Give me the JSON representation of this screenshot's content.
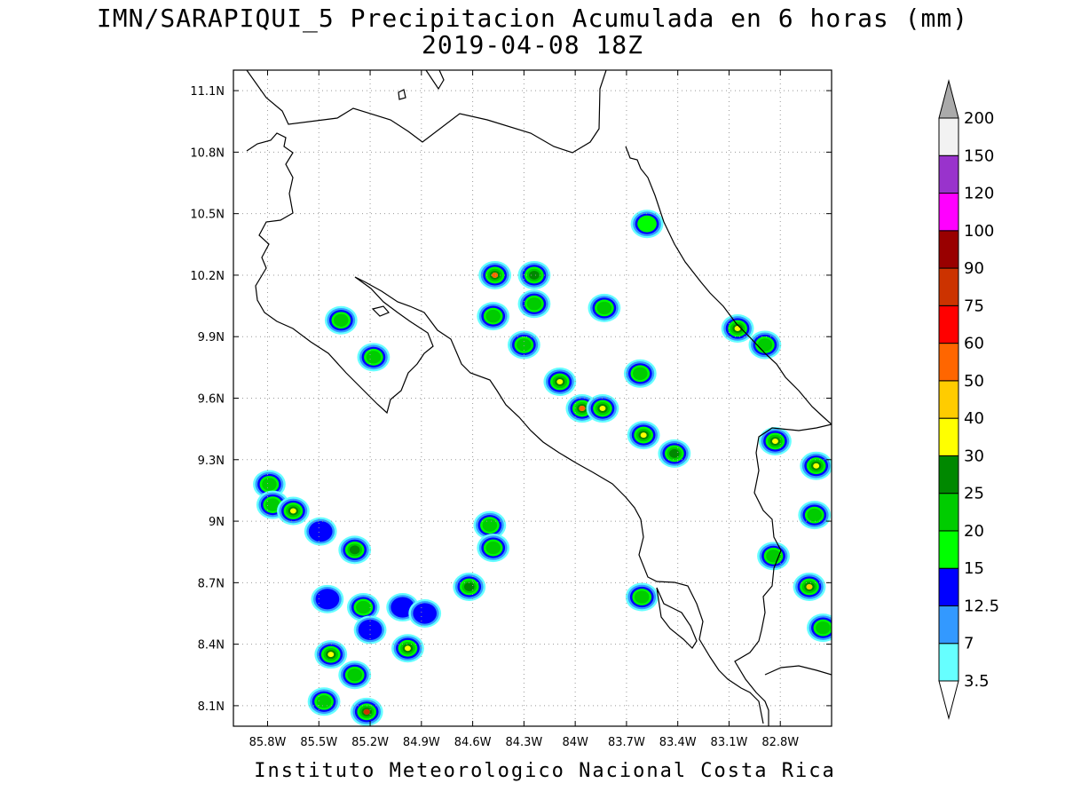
{
  "title_line1": "IMN/SARAPIQUI_5 Precipitacion Acumulada en 6 horas (mm)",
  "title_line2": "2019-04-08 18Z",
  "footer": "Instituto Meteorologico Nacional Costa Rica",
  "map": {
    "lon_range": [
      -86.0,
      -82.5
    ],
    "lat_range": [
      8.0,
      11.2
    ],
    "lon_ticks": [
      "85.8W",
      "85.5W",
      "85.2W",
      "84.9W",
      "84.6W",
      "84.3W",
      "84W",
      "83.7W",
      "83.4W",
      "83.1W",
      "82.8W"
    ],
    "lat_ticks": [
      "11.1N",
      "10.8N",
      "10.5N",
      "10.2N",
      "9.9N",
      "9.6N",
      "9.3N",
      "9N",
      "8.7N",
      "8.4N",
      "8.1N"
    ],
    "grid": true
  },
  "colorbar": {
    "levels": [
      "3.5",
      "7",
      "12.5",
      "15",
      "20",
      "25",
      "30",
      "40",
      "50",
      "60",
      "75",
      "90",
      "100",
      "120",
      "150",
      "200"
    ],
    "colors": [
      "#66ffff",
      "#3399ff",
      "#0000ff",
      "#00ff00",
      "#00cc00",
      "#008800",
      "#ffff00",
      "#ffcc00",
      "#ff6600",
      "#ff0000",
      "#cc3300",
      "#990000",
      "#ff00ff",
      "#9933cc",
      "#f2f2f2",
      "#aaaaaa"
    ]
  },
  "precip_cells": [
    {
      "lon": -85.79,
      "lat": 9.18,
      "v": 20
    },
    {
      "lon": -85.77,
      "lat": 9.08,
      "v": 20
    },
    {
      "lon": -85.65,
      "lat": 9.05,
      "v": 30
    },
    {
      "lon": -85.49,
      "lat": 8.95,
      "v": 12.5
    },
    {
      "lon": -85.29,
      "lat": 8.86,
      "v": 25
    },
    {
      "lon": -85.45,
      "lat": 8.62,
      "v": 12.5
    },
    {
      "lon": -85.24,
      "lat": 8.58,
      "v": 20
    },
    {
      "lon": -85.2,
      "lat": 8.47,
      "v": 12.5
    },
    {
      "lon": -85.43,
      "lat": 8.35,
      "v": 30
    },
    {
      "lon": -85.29,
      "lat": 8.25,
      "v": 20
    },
    {
      "lon": -85.47,
      "lat": 8.12,
      "v": 20
    },
    {
      "lon": -85.22,
      "lat": 8.07,
      "v": 75
    },
    {
      "lon": -84.98,
      "lat": 8.38,
      "v": 30
    },
    {
      "lon": -85.01,
      "lat": 8.58,
      "v": 12.5
    },
    {
      "lon": -84.88,
      "lat": 8.55,
      "v": 12.5
    },
    {
      "lon": -84.62,
      "lat": 8.68,
      "v": 25
    },
    {
      "lon": -84.5,
      "lat": 8.98,
      "v": 20
    },
    {
      "lon": -84.48,
      "lat": 8.87,
      "v": 20
    },
    {
      "lon": -85.37,
      "lat": 9.98,
      "v": 20
    },
    {
      "lon": -85.18,
      "lat": 9.8,
      "v": 20
    },
    {
      "lon": -84.47,
      "lat": 10.2,
      "v": 50
    },
    {
      "lon": -84.48,
      "lat": 10.0,
      "v": 20
    },
    {
      "lon": -84.24,
      "lat": 10.2,
      "v": 25
    },
    {
      "lon": -84.24,
      "lat": 10.06,
      "v": 20
    },
    {
      "lon": -84.3,
      "lat": 9.86,
      "v": 20
    },
    {
      "lon": -84.09,
      "lat": 9.68,
      "v": 30
    },
    {
      "lon": -83.96,
      "lat": 9.55,
      "v": 50
    },
    {
      "lon": -83.84,
      "lat": 9.55,
      "v": 30
    },
    {
      "lon": -83.83,
      "lat": 10.04,
      "v": 20
    },
    {
      "lon": -83.62,
      "lat": 9.72,
      "v": 20
    },
    {
      "lon": -83.6,
      "lat": 9.42,
      "v": 30
    },
    {
      "lon": -83.42,
      "lat": 9.33,
      "v": 25
    },
    {
      "lon": -83.58,
      "lat": 10.45,
      "v": 15
    },
    {
      "lon": -83.05,
      "lat": 9.94,
      "v": 30
    },
    {
      "lon": -82.89,
      "lat": 9.86,
      "v": 20
    },
    {
      "lon": -82.83,
      "lat": 9.39,
      "v": 30
    },
    {
      "lon": -82.59,
      "lat": 9.27,
      "v": 30
    },
    {
      "lon": -82.6,
      "lat": 9.03,
      "v": 20
    },
    {
      "lon": -82.63,
      "lat": 8.68,
      "v": 40
    },
    {
      "lon": -82.55,
      "lat": 8.48,
      "v": 20
    },
    {
      "lon": -82.84,
      "lat": 8.83,
      "v": 20
    },
    {
      "lon": -83.61,
      "lat": 8.63,
      "v": 20
    }
  ]
}
